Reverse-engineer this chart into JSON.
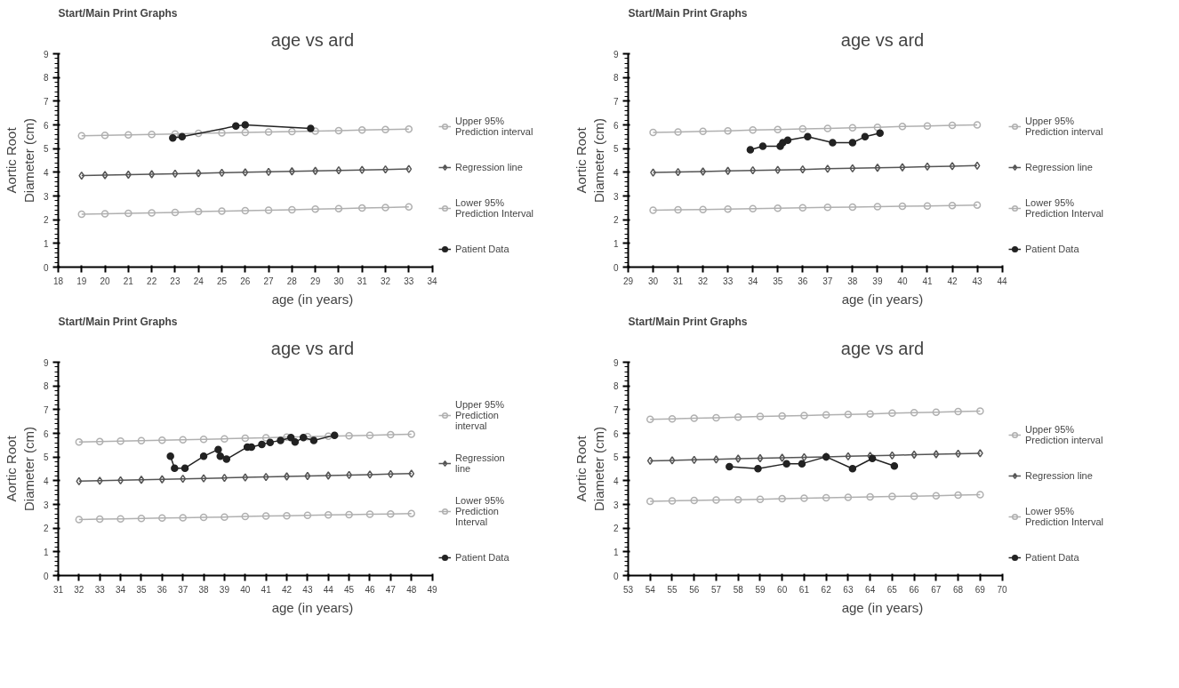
{
  "chart_data": [
    {
      "type": "line",
      "title": "age vs ard",
      "xlabel": "age (in years)",
      "ylabel": "Aortic Root\nDiameter (cm)",
      "annotations": [
        "Start/Main   Print   Graphs"
      ],
      "legend": "right",
      "grid": false,
      "xlim": [
        18,
        34
      ],
      "xticks": [
        18,
        19,
        20,
        21,
        22,
        23,
        24,
        25,
        26,
        27,
        28,
        29,
        30,
        31,
        32,
        33,
        34
      ],
      "ylim": [
        0,
        9
      ],
      "yticks": [
        0,
        1,
        2,
        3,
        4,
        5,
        6,
        7,
        8,
        9
      ],
      "series": [
        {
          "name": "Upper 95%\nPrediction interval",
          "color": "#b0b0b0",
          "marker": "circle",
          "x": [
            19,
            20,
            21,
            22,
            23,
            24,
            25,
            26,
            27,
            28,
            29,
            30,
            31,
            32,
            33
          ],
          "values": [
            5.54,
            5.56,
            5.58,
            5.6,
            5.62,
            5.64,
            5.66,
            5.68,
            5.7,
            5.72,
            5.74,
            5.76,
            5.78,
            5.8,
            5.82
          ]
        },
        {
          "name": "Regression line",
          "color": "#555555",
          "marker": "diamond",
          "x": [
            19,
            20,
            21,
            22,
            23,
            24,
            25,
            26,
            27,
            28,
            29,
            30,
            31,
            32,
            33
          ],
          "values": [
            3.86,
            3.88,
            3.9,
            3.92,
            3.94,
            3.96,
            3.98,
            4.0,
            4.02,
            4.04,
            4.06,
            4.08,
            4.1,
            4.12,
            4.14
          ]
        },
        {
          "name": "Lower 95%\nPrediction Interval",
          "color": "#b0b0b0",
          "marker": "circle",
          "x": [
            19,
            20,
            21,
            22,
            23,
            24,
            25,
            26,
            27,
            28,
            29,
            30,
            31,
            32,
            33
          ],
          "values": [
            2.23,
            2.25,
            2.27,
            2.29,
            2.31,
            2.34,
            2.36,
            2.38,
            2.4,
            2.42,
            2.45,
            2.47,
            2.49,
            2.51,
            2.54
          ]
        },
        {
          "name": "Patient Data",
          "color": "#222222",
          "marker": "circle",
          "x": [
            22.9,
            23.3,
            25.6,
            26.0,
            28.8
          ],
          "values": [
            5.45,
            5.5,
            5.95,
            6.0,
            5.85
          ]
        }
      ]
    },
    {
      "type": "line",
      "title": "age vs ard",
      "xlabel": "age (in years)",
      "ylabel": "Aortic Root\nDiameter (cm)",
      "annotations": [
        "Start/Main   Print   Graphs"
      ],
      "legend": "right",
      "grid": false,
      "xlim": [
        29,
        44
      ],
      "xticks": [
        29,
        30,
        31,
        32,
        33,
        34,
        35,
        36,
        37,
        38,
        39,
        40,
        41,
        42,
        43,
        44
      ],
      "ylim": [
        0,
        9
      ],
      "yticks": [
        0,
        1,
        2,
        3,
        4,
        5,
        6,
        7,
        8,
        9
      ],
      "series": [
        {
          "name": "Upper 95%\nPrediction interval",
          "color": "#b0b0b0",
          "marker": "circle",
          "x": [
            30,
            31,
            32,
            33,
            34,
            35,
            36,
            37,
            38,
            39,
            40,
            41,
            42,
            43
          ],
          "values": [
            5.68,
            5.7,
            5.73,
            5.75,
            5.78,
            5.8,
            5.83,
            5.85,
            5.88,
            5.9,
            5.93,
            5.95,
            5.98,
            6.0
          ]
        },
        {
          "name": "Regression line",
          "color": "#555555",
          "marker": "diamond",
          "x": [
            30,
            31,
            32,
            33,
            34,
            35,
            36,
            37,
            38,
            39,
            40,
            41,
            42,
            43
          ],
          "values": [
            3.99,
            4.01,
            4.03,
            4.06,
            4.08,
            4.1,
            4.12,
            4.15,
            4.17,
            4.19,
            4.21,
            4.24,
            4.26,
            4.28
          ]
        },
        {
          "name": "Lower 95%\nPrediction Interval",
          "color": "#b0b0b0",
          "marker": "circle",
          "x": [
            30,
            31,
            32,
            33,
            34,
            35,
            36,
            37,
            38,
            39,
            40,
            41,
            42,
            43
          ],
          "values": [
            2.4,
            2.42,
            2.43,
            2.45,
            2.47,
            2.48,
            2.5,
            2.52,
            2.53,
            2.55,
            2.57,
            2.58,
            2.6,
            2.62
          ]
        },
        {
          "name": "Patient Data",
          "color": "#222222",
          "marker": "circle",
          "x": [
            33.9,
            34.4,
            35.1,
            35.2,
            35.4,
            36.2,
            37.2,
            38.0,
            38.5,
            39.1
          ],
          "values": [
            4.95,
            5.1,
            5.1,
            5.25,
            5.35,
            5.5,
            5.25,
            5.25,
            5.5,
            5.65
          ]
        }
      ]
    },
    {
      "type": "line",
      "title": "age vs ard",
      "xlabel": "age (in years)",
      "ylabel": "Aortic Root\nDiameter (cm)",
      "annotations": [
        "Start/Main   Print   Graphs"
      ],
      "legend": "right",
      "grid": false,
      "xlim": [
        31,
        49
      ],
      "xticks": [
        31,
        32,
        33,
        34,
        35,
        36,
        37,
        38,
        39,
        40,
        41,
        42,
        43,
        44,
        45,
        46,
        47,
        48,
        49
      ],
      "ylim": [
        0,
        9
      ],
      "yticks": [
        0,
        1,
        2,
        3,
        4,
        5,
        6,
        7,
        8,
        9
      ],
      "series": [
        {
          "name": "Upper 95%\nPrediction\ninterval",
          "color": "#b0b0b0",
          "marker": "circle",
          "x": [
            32,
            33,
            34,
            35,
            36,
            37,
            38,
            39,
            40,
            41,
            42,
            43,
            44,
            45,
            46,
            47,
            48
          ],
          "values": [
            5.63,
            5.65,
            5.67,
            5.69,
            5.71,
            5.73,
            5.75,
            5.77,
            5.79,
            5.81,
            5.84,
            5.86,
            5.88,
            5.9,
            5.92,
            5.94,
            5.96
          ]
        },
        {
          "name": "Regression\nline",
          "color": "#555555",
          "marker": "diamond",
          "x": [
            32,
            33,
            34,
            35,
            36,
            37,
            38,
            39,
            40,
            41,
            42,
            43,
            44,
            45,
            46,
            47,
            48
          ],
          "values": [
            3.98,
            4.0,
            4.02,
            4.04,
            4.06,
            4.08,
            4.1,
            4.12,
            4.14,
            4.16,
            4.18,
            4.2,
            4.22,
            4.24,
            4.26,
            4.28,
            4.3
          ]
        },
        {
          "name": "Lower 95%\nPrediction\nInterval",
          "color": "#b0b0b0",
          "marker": "circle",
          "x": [
            32,
            33,
            34,
            35,
            36,
            37,
            38,
            39,
            40,
            41,
            42,
            43,
            44,
            45,
            46,
            47,
            48
          ],
          "values": [
            2.36,
            2.38,
            2.39,
            2.41,
            2.43,
            2.44,
            2.46,
            2.47,
            2.49,
            2.51,
            2.52,
            2.54,
            2.56,
            2.57,
            2.59,
            2.6,
            2.62
          ]
        },
        {
          "name": "Patient Data",
          "color": "#222222",
          "marker": "circle",
          "x": [
            36.4,
            36.6,
            37.1,
            38.0,
            38.7,
            38.8,
            39.1,
            40.1,
            40.3,
            40.8,
            41.2,
            41.7,
            42.2,
            42.4,
            42.8,
            43.3,
            44.3
          ],
          "values": [
            5.03,
            4.53,
            4.53,
            5.03,
            5.32,
            5.03,
            4.91,
            5.42,
            5.42,
            5.53,
            5.62,
            5.7,
            5.82,
            5.63,
            5.82,
            5.7,
            5.92
          ]
        }
      ]
    },
    {
      "type": "line",
      "title": "age vs ard",
      "xlabel": "age (in years)",
      "ylabel": "Aortic Root\nDiameter (cm)",
      "annotations": [
        "Start/Main   Print   Graphs"
      ],
      "legend": "right",
      "grid": false,
      "xlim": [
        53,
        70
      ],
      "xticks": [
        53,
        54,
        55,
        56,
        57,
        58,
        59,
        60,
        61,
        62,
        63,
        64,
        65,
        66,
        67,
        68,
        69,
        70
      ],
      "ylim": [
        0,
        9
      ],
      "yticks": [
        0,
        1,
        2,
        3,
        4,
        5,
        6,
        7,
        8,
        9
      ],
      "series": [
        {
          "name": "Upper 95%\nPrediction interval",
          "color": "#b0b0b0",
          "marker": "circle",
          "x": [
            54,
            55,
            56,
            57,
            58,
            59,
            60,
            61,
            62,
            63,
            64,
            65,
            66,
            67,
            68,
            69
          ],
          "values": [
            6.59,
            6.61,
            6.64,
            6.66,
            6.68,
            6.71,
            6.73,
            6.75,
            6.78,
            6.8,
            6.82,
            6.85,
            6.87,
            6.89,
            6.92,
            6.94
          ]
        },
        {
          "name": "Regression line",
          "color": "#555555",
          "marker": "diamond",
          "x": [
            54,
            55,
            56,
            57,
            58,
            59,
            60,
            61,
            62,
            63,
            64,
            65,
            66,
            67,
            68,
            69
          ],
          "values": [
            4.84,
            4.86,
            4.88,
            4.9,
            4.93,
            4.95,
            4.97,
            4.99,
            5.01,
            5.03,
            5.05,
            5.07,
            5.1,
            5.12,
            5.14,
            5.16
          ]
        },
        {
          "name": "Lower 95%\nPrediction Interval",
          "color": "#b0b0b0",
          "marker": "circle",
          "x": [
            54,
            55,
            56,
            57,
            58,
            59,
            60,
            61,
            62,
            63,
            64,
            65,
            66,
            67,
            68,
            69
          ],
          "values": [
            3.13,
            3.15,
            3.17,
            3.19,
            3.2,
            3.22,
            3.24,
            3.26,
            3.28,
            3.3,
            3.32,
            3.34,
            3.35,
            3.37,
            3.39,
            3.41
          ]
        },
        {
          "name": "Patient Data",
          "color": "#222222",
          "marker": "circle",
          "x": [
            57.6,
            58.9,
            60.2,
            60.9,
            62.0,
            63.2,
            64.1,
            65.1
          ],
          "values": [
            4.59,
            4.51,
            4.72,
            4.72,
            5.01,
            4.51,
            4.94,
            4.62
          ]
        }
      ]
    }
  ]
}
